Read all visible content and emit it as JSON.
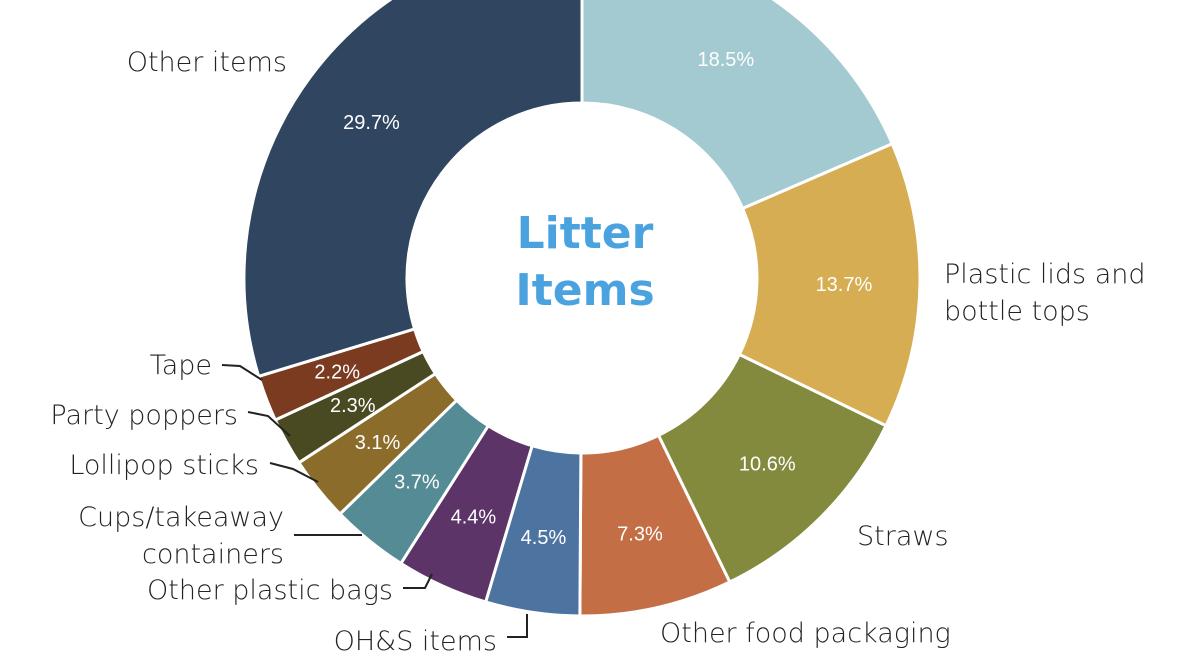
{
  "chart_data": {
    "type": "pie",
    "center_title": [
      "Litter",
      "Items"
    ],
    "slices": [
      {
        "label": [],
        "value": 18.5,
        "value_label": "18.5%",
        "color": "#a3c9d1"
      },
      {
        "label": [
          "Plastic lids and",
          "bottle tops"
        ],
        "value": 13.7,
        "value_label": "13.7%",
        "color": "#d6ad52"
      },
      {
        "label": [
          "Straws"
        ],
        "value": 10.6,
        "value_label": "10.6%",
        "color": "#838a3e"
      },
      {
        "label": [
          "Other food packaging"
        ],
        "value": 7.3,
        "value_label": "7.3%",
        "color": "#c46e45"
      },
      {
        "label": [
          "OH&S items"
        ],
        "value": 4.5,
        "value_label": "4.5%",
        "color": "#4d74a0"
      },
      {
        "label": [
          "Other plastic bags"
        ],
        "value": 4.4,
        "value_label": "4.4%",
        "color": "#5c3468"
      },
      {
        "label": [
          "Cups/takeaway",
          "containers"
        ],
        "value": 3.7,
        "value_label": "3.7%",
        "color": "#548b95"
      },
      {
        "label": [
          "Lollipop sticks"
        ],
        "value": 3.1,
        "value_label": "3.1%",
        "color": "#8c6c2a"
      },
      {
        "label": [
          "Party poppers"
        ],
        "value": 2.3,
        "value_label": "2.3%",
        "color": "#4a4a22"
      },
      {
        "label": [
          "Tape"
        ],
        "value": 2.2,
        "value_label": "2.2%",
        "color": "#7b3b20"
      },
      {
        "label": [
          "Other items"
        ],
        "value": 29.7,
        "value_label": "29.7%",
        "color": "#2f4560"
      }
    ]
  }
}
